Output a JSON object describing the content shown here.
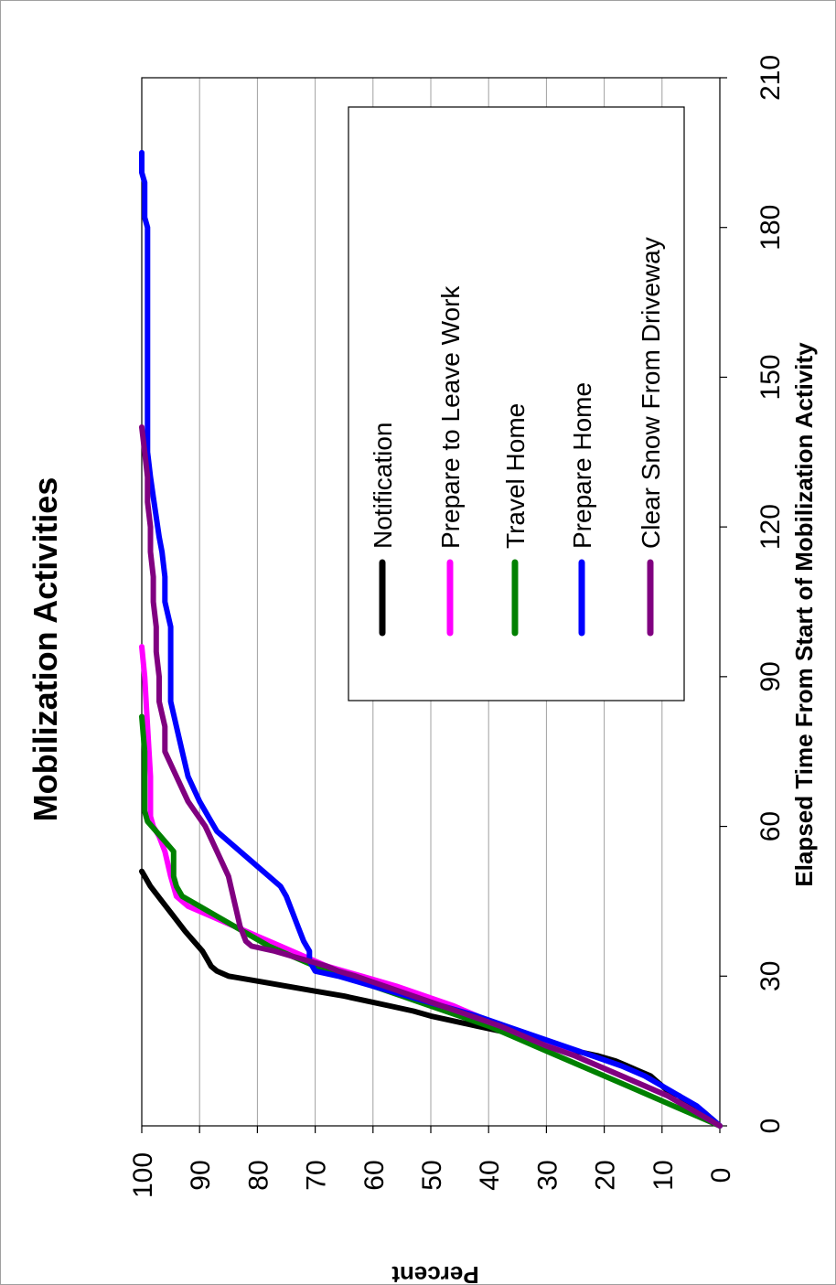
{
  "chart_data": {
    "type": "line",
    "title": "Mobilization Activities",
    "xlabel": "Elapsed Time From Start of Mobilization Activity",
    "ylabel": "Percent",
    "xlim": [
      0,
      210
    ],
    "ylim": [
      0,
      100
    ],
    "x_ticks": [
      0,
      30,
      60,
      90,
      120,
      150,
      180,
      210
    ],
    "y_ticks": [
      0,
      10,
      20,
      30,
      40,
      50,
      60,
      70,
      80,
      90,
      100
    ],
    "grid": "horizontal",
    "orientation": "rotated 90 degrees clockwise",
    "legend_position": "top-right",
    "series": [
      {
        "name": "Notification",
        "color": "#000000",
        "points": [
          [
            0,
            0
          ],
          [
            1,
            1
          ],
          [
            2,
            2
          ],
          [
            3,
            3
          ],
          [
            4,
            5
          ],
          [
            5,
            6
          ],
          [
            6,
            7
          ],
          [
            7,
            9
          ],
          [
            8,
            10
          ],
          [
            9,
            11
          ],
          [
            10,
            12
          ],
          [
            11,
            14
          ],
          [
            12,
            16
          ],
          [
            13,
            18
          ],
          [
            14,
            21
          ],
          [
            15,
            25
          ],
          [
            16,
            29
          ],
          [
            17,
            32
          ],
          [
            18,
            35
          ],
          [
            19,
            38
          ],
          [
            20,
            42
          ],
          [
            21,
            46
          ],
          [
            22,
            50
          ],
          [
            23,
            53
          ],
          [
            24,
            57
          ],
          [
            25,
            61
          ],
          [
            26,
            65
          ],
          [
            27,
            70
          ],
          [
            28,
            75
          ],
          [
            29,
            80
          ],
          [
            30,
            85
          ],
          [
            31,
            87
          ],
          [
            32,
            88
          ],
          [
            33,
            88.5
          ],
          [
            35,
            89.5
          ],
          [
            37,
            91
          ],
          [
            39,
            92.5
          ],
          [
            42,
            94.5
          ],
          [
            45,
            96.5
          ],
          [
            48,
            98.5
          ],
          [
            50,
            99.5
          ],
          [
            51,
            100
          ]
        ]
      },
      {
        "name": "Prepare to Leave Work",
        "color": "#ff00ff",
        "points": [
          [
            0,
            0
          ],
          [
            2,
            3
          ],
          [
            4,
            6
          ],
          [
            6,
            9
          ],
          [
            8,
            13
          ],
          [
            10,
            17
          ],
          [
            12,
            21
          ],
          [
            14,
            25
          ],
          [
            16,
            29
          ],
          [
            18,
            33
          ],
          [
            20,
            38
          ],
          [
            22,
            42
          ],
          [
            24,
            46
          ],
          [
            26,
            51
          ],
          [
            28,
            56
          ],
          [
            30,
            62
          ],
          [
            32,
            68
          ],
          [
            34,
            72
          ],
          [
            36,
            76
          ],
          [
            38,
            80
          ],
          [
            40,
            84
          ],
          [
            42,
            88
          ],
          [
            44,
            92
          ],
          [
            46,
            94
          ],
          [
            50,
            95
          ],
          [
            55,
            96
          ],
          [
            58,
            97
          ],
          [
            60,
            98
          ],
          [
            62,
            98.5
          ],
          [
            70,
            98.5
          ],
          [
            80,
            99
          ],
          [
            90,
            99.5
          ],
          [
            96,
            100
          ]
        ]
      },
      {
        "name": "Travel Home",
        "color": "#008000",
        "points": [
          [
            0,
            0
          ],
          [
            2,
            4
          ],
          [
            4,
            8
          ],
          [
            6,
            12
          ],
          [
            8,
            16
          ],
          [
            10,
            20
          ],
          [
            12,
            24
          ],
          [
            14,
            28
          ],
          [
            16,
            32
          ],
          [
            18,
            36
          ],
          [
            20,
            40
          ],
          [
            22,
            45
          ],
          [
            24,
            50
          ],
          [
            26,
            55
          ],
          [
            28,
            60
          ],
          [
            30,
            65
          ],
          [
            32,
            70
          ],
          [
            34,
            74
          ],
          [
            36,
            78
          ],
          [
            38,
            81
          ],
          [
            40,
            84
          ],
          [
            42,
            87
          ],
          [
            44,
            90
          ],
          [
            46,
            93
          ],
          [
            48,
            94
          ],
          [
            50,
            94.5
          ],
          [
            55,
            94.5
          ],
          [
            57,
            96
          ],
          [
            59,
            97.5
          ],
          [
            61,
            99
          ],
          [
            63,
            99.5
          ],
          [
            70,
            99.5
          ],
          [
            75,
            99.5
          ],
          [
            82,
            100
          ]
        ]
      },
      {
        "name": "Prepare Home",
        "color": "#0000ff",
        "points": [
          [
            0,
            0
          ],
          [
            1,
            1
          ],
          [
            2,
            2
          ],
          [
            4,
            4
          ],
          [
            6,
            7
          ],
          [
            8,
            10
          ],
          [
            10,
            13
          ],
          [
            12,
            17
          ],
          [
            14,
            22
          ],
          [
            16,
            27
          ],
          [
            18,
            32
          ],
          [
            20,
            37
          ],
          [
            22,
            42
          ],
          [
            24,
            48
          ],
          [
            26,
            54
          ],
          [
            28,
            60
          ],
          [
            30,
            66
          ],
          [
            31,
            70
          ],
          [
            33,
            71
          ],
          [
            35,
            71
          ],
          [
            37,
            72
          ],
          [
            40,
            73
          ],
          [
            43,
            74
          ],
          [
            46,
            75
          ],
          [
            48,
            76
          ],
          [
            50,
            78
          ],
          [
            53,
            81
          ],
          [
            56,
            84
          ],
          [
            59,
            87
          ],
          [
            61,
            88
          ],
          [
            65,
            90
          ],
          [
            70,
            92
          ],
          [
            75,
            93
          ],
          [
            80,
            94
          ],
          [
            85,
            95
          ],
          [
            90,
            95
          ],
          [
            95,
            95
          ],
          [
            100,
            95
          ],
          [
            105,
            96
          ],
          [
            110,
            96
          ],
          [
            115,
            96.5
          ],
          [
            118,
            97
          ],
          [
            122,
            97.5
          ],
          [
            126,
            98
          ],
          [
            130,
            98.5
          ],
          [
            135,
            99
          ],
          [
            140,
            99
          ],
          [
            150,
            99
          ],
          [
            160,
            99
          ],
          [
            170,
            99
          ],
          [
            180,
            99
          ],
          [
            182,
            99.5
          ],
          [
            189,
            99.5
          ],
          [
            191,
            100
          ],
          [
            195,
            100
          ]
        ]
      },
      {
        "name": "Clear Snow From Driveway",
        "color": "#800080",
        "points": [
          [
            0,
            0
          ],
          [
            2,
            3
          ],
          [
            4,
            6
          ],
          [
            6,
            9
          ],
          [
            8,
            13
          ],
          [
            10,
            17
          ],
          [
            12,
            21
          ],
          [
            14,
            25
          ],
          [
            16,
            30
          ],
          [
            18,
            34
          ],
          [
            20,
            38
          ],
          [
            22,
            43
          ],
          [
            24,
            48
          ],
          [
            26,
            53
          ],
          [
            28,
            58
          ],
          [
            30,
            63
          ],
          [
            31,
            66
          ],
          [
            32,
            68
          ],
          [
            33,
            71
          ],
          [
            34,
            74
          ],
          [
            35,
            77
          ],
          [
            36,
            81
          ],
          [
            37,
            82
          ],
          [
            40,
            83
          ],
          [
            45,
            84
          ],
          [
            50,
            85
          ],
          [
            55,
            87
          ],
          [
            60,
            89
          ],
          [
            65,
            92
          ],
          [
            70,
            94
          ],
          [
            75,
            96
          ],
          [
            80,
            96
          ],
          [
            85,
            97
          ],
          [
            90,
            97
          ],
          [
            95,
            97.5
          ],
          [
            100,
            97.5
          ],
          [
            105,
            98
          ],
          [
            110,
            98
          ],
          [
            115,
            98.5
          ],
          [
            120,
            98.5
          ],
          [
            125,
            99
          ],
          [
            130,
            99
          ],
          [
            135,
            99.5
          ],
          [
            140,
            100
          ]
        ]
      }
    ]
  }
}
